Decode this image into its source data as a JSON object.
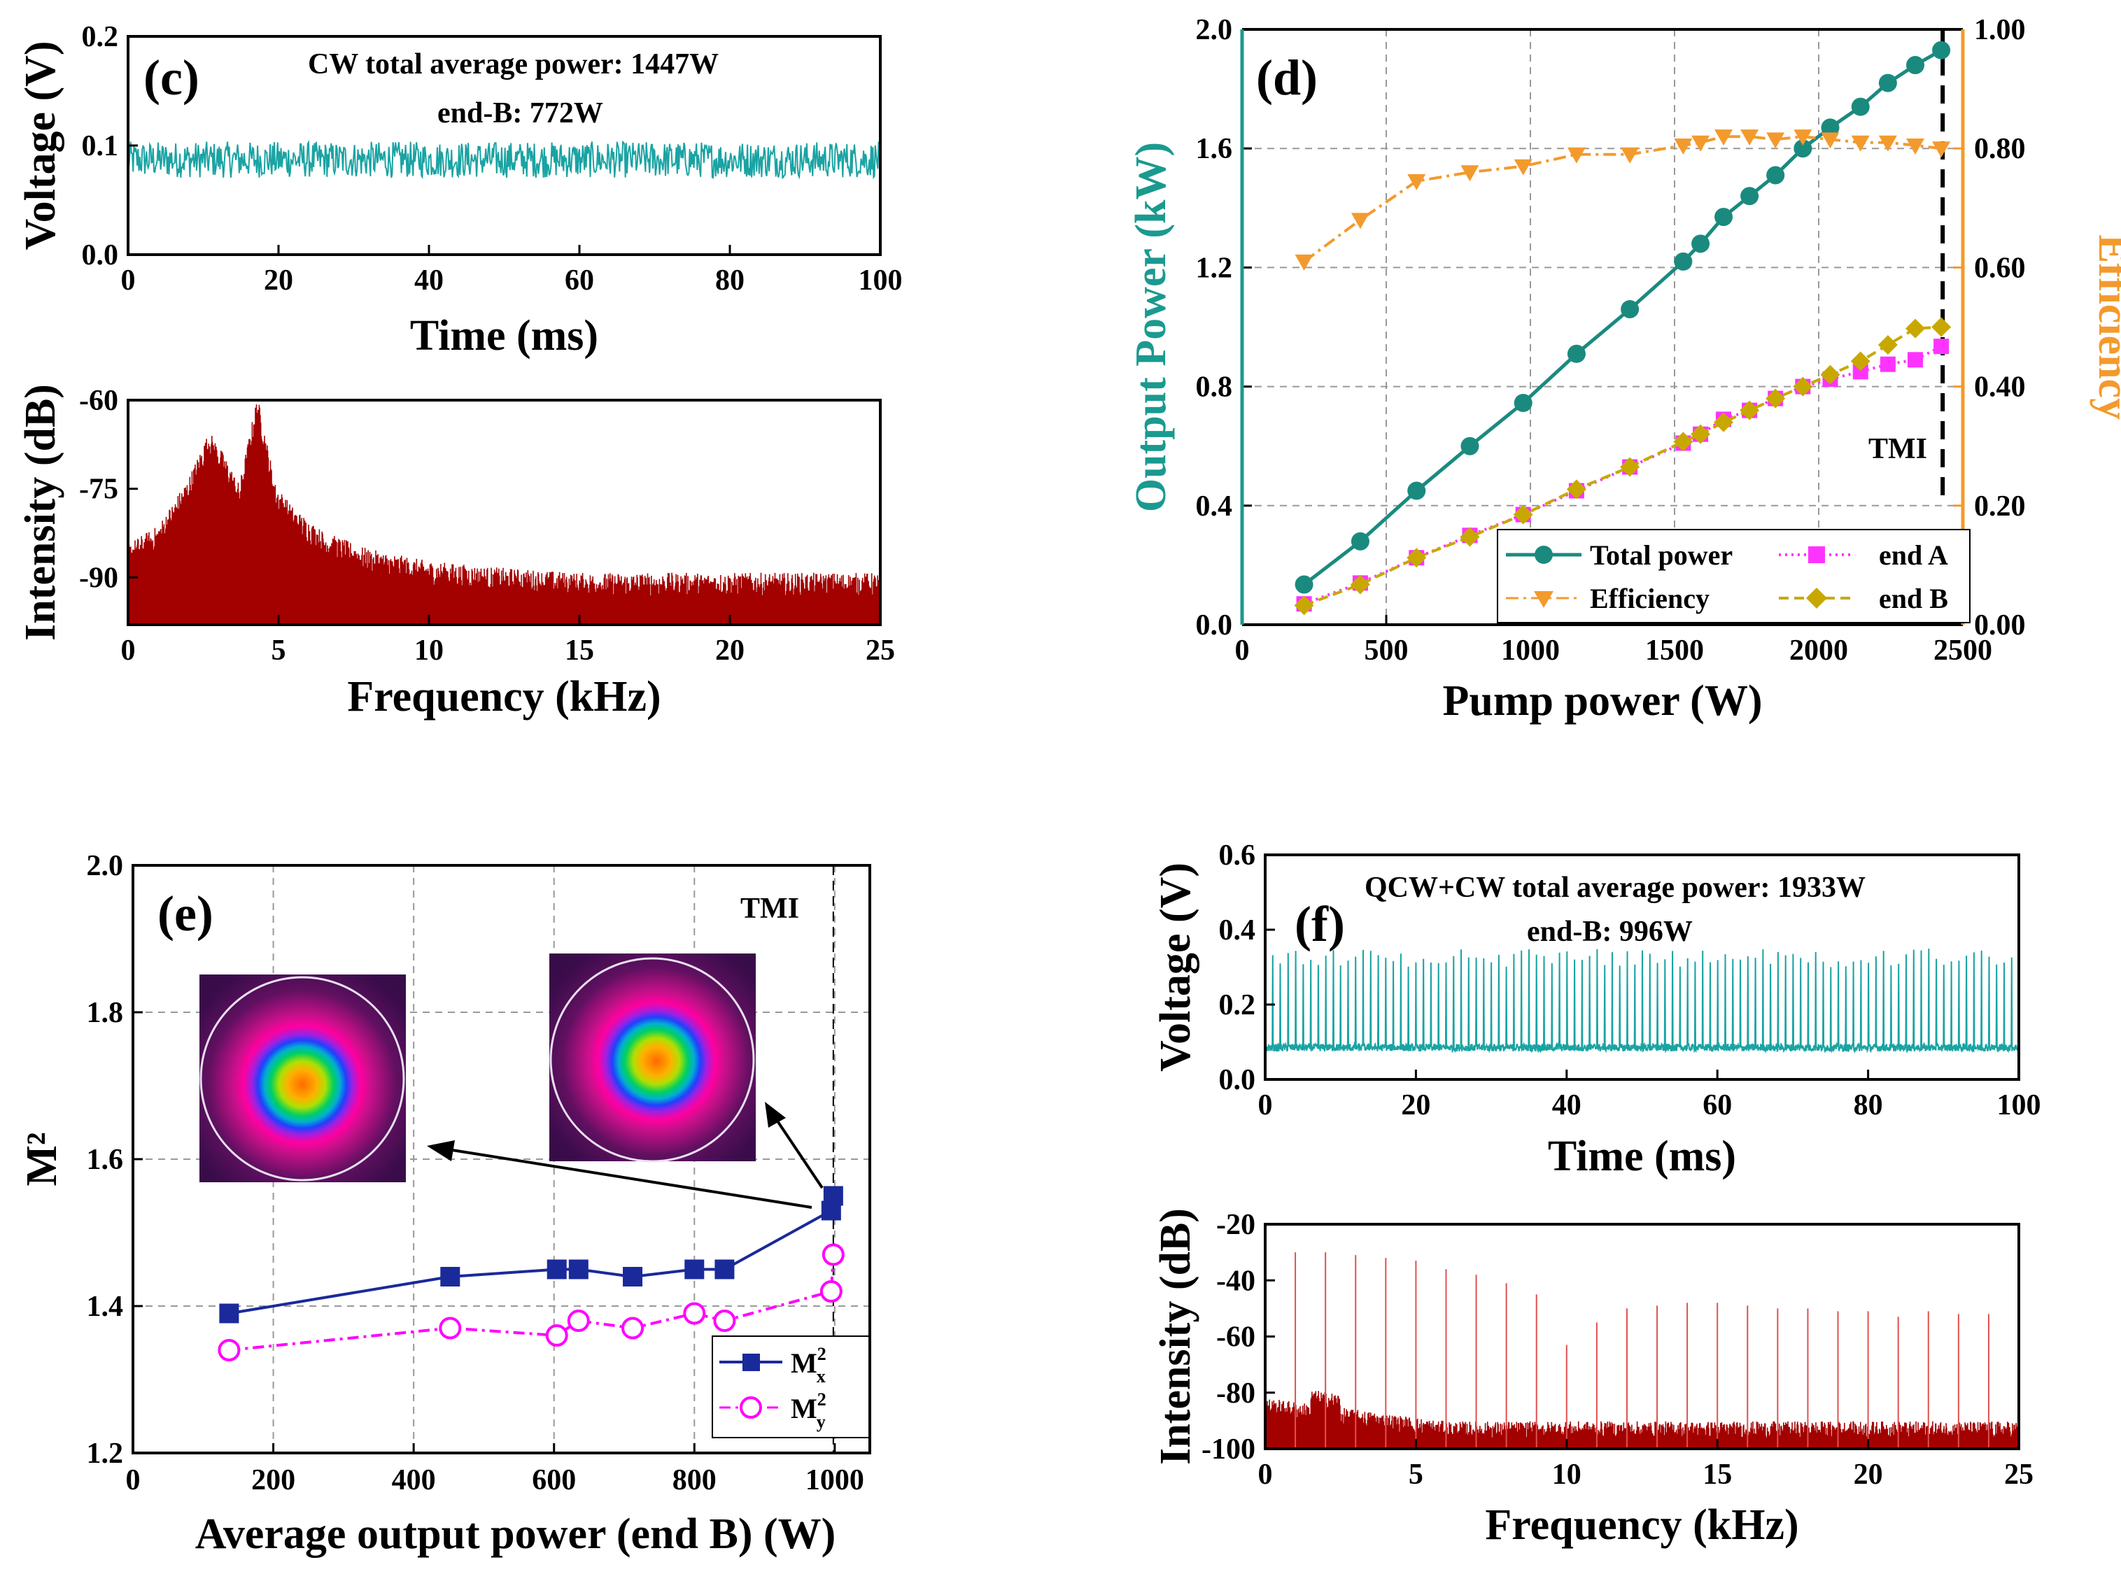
{
  "chart_data": [
    {
      "id": "c",
      "panel_label": "(c)",
      "type": "line",
      "title": "",
      "annotation_lines": [
        "CW total average power: 1447W",
        "end-B: 772W"
      ],
      "subplots": [
        {
          "xlabel": "Time (ms)",
          "ylabel": "Voltage (V)",
          "xlim": [
            0,
            100
          ],
          "ylim": [
            0,
            0.2
          ],
          "xticks": [
            "0",
            "20",
            "40",
            "60",
            "80",
            "100"
          ],
          "yticks": [
            "0.0",
            "0.1",
            "0.2"
          ],
          "series": [
            {
              "name": "voltage",
              "color": "#1aa3a3",
              "mean": 0.087,
              "band": [
                0.07,
                0.105
              ]
            }
          ]
        },
        {
          "xlabel": "Frequency (kHz)",
          "ylabel": "Intensity (dB)",
          "xlim": [
            0,
            25
          ],
          "ylim": [
            -98,
            -60
          ],
          "xticks": [
            "0",
            "5",
            "10",
            "15",
            "20",
            "25"
          ],
          "yticks": [
            "-60",
            "-75",
            "-90"
          ],
          "series": [
            {
              "name": "spectrum",
              "color": "#a30000",
              "envelope_x": [
                0,
                1,
                2,
                2.7,
                3.2,
                3.7,
                4.3,
                4.9,
                5.5,
                6.5,
                8,
                10,
                12,
                15,
                20,
                25
              ],
              "envelope_y": [
                -87,
                -84,
                -76,
                -68,
                -72,
                -77,
                -62,
                -77,
                -81,
                -85,
                -88,
                -90,
                -91,
                -92,
                -92,
                -92
              ]
            }
          ]
        }
      ]
    },
    {
      "id": "d",
      "panel_label": "(d)",
      "type": "line",
      "title": "",
      "xlabel": "Pump power (W)",
      "ylabel": "Output Power (kW)",
      "ylabel_right": "Efficiency",
      "xlim": [
        0,
        2500
      ],
      "ylim": [
        0,
        2.0
      ],
      "ylim_right": [
        0,
        1.0
      ],
      "xticks": [
        "0",
        "500",
        "1000",
        "1500",
        "2000",
        "2500"
      ],
      "yticks": [
        "0.0",
        "0.4",
        "0.8",
        "1.2",
        "1.6",
        "2.0"
      ],
      "yticks_right": [
        "0.00",
        "0.20",
        "0.40",
        "0.60",
        "0.80",
        "1.00"
      ],
      "annotation": "TMI",
      "tmi_x": 2430,
      "grid": true,
      "legend_position": "bottom-right",
      "colors": {
        "left_axis": "#1a9a8f",
        "right_axis": "#f39a2d"
      },
      "series": [
        {
          "name": "Total power",
          "axis": "left",
          "color": "#1a8a7f",
          "marker": "circle",
          "style": "solid",
          "x": [
            215,
            410,
            605,
            790,
            975,
            1160,
            1345,
            1530,
            1590,
            1670,
            1760,
            1850,
            1945,
            2040,
            2145,
            2240,
            2335,
            2425
          ],
          "y": [
            0.135,
            0.28,
            0.45,
            0.6,
            0.745,
            0.91,
            1.06,
            1.22,
            1.28,
            1.37,
            1.44,
            1.51,
            1.6,
            1.67,
            1.74,
            1.82,
            1.88,
            1.93
          ]
        },
        {
          "name": "Efficiency",
          "axis": "right",
          "color": "#f39a2d",
          "marker": "triangle-down",
          "style": "dashdot",
          "x": [
            215,
            410,
            605,
            790,
            975,
            1160,
            1345,
            1530,
            1590,
            1670,
            1760,
            1850,
            1945,
            2040,
            2145,
            2240,
            2335,
            2425
          ],
          "y": [
            0.61,
            0.68,
            0.745,
            0.76,
            0.77,
            0.79,
            0.79,
            0.805,
            0.81,
            0.82,
            0.82,
            0.815,
            0.82,
            0.815,
            0.81,
            0.81,
            0.805,
            0.8
          ]
        },
        {
          "name": "end A",
          "axis": "left",
          "color": "#ff33ff",
          "marker": "square",
          "style": "dotted",
          "x": [
            215,
            410,
            605,
            790,
            975,
            1160,
            1345,
            1530,
            1590,
            1670,
            1760,
            1850,
            1945,
            2040,
            2145,
            2240,
            2335,
            2425
          ],
          "y": [
            0.07,
            0.14,
            0.225,
            0.3,
            0.37,
            0.45,
            0.53,
            0.61,
            0.64,
            0.69,
            0.72,
            0.76,
            0.8,
            0.825,
            0.85,
            0.875,
            0.89,
            0.935
          ]
        },
        {
          "name": "end B",
          "axis": "left",
          "color": "#c8a800",
          "marker": "diamond",
          "style": "dashed",
          "x": [
            215,
            410,
            605,
            790,
            975,
            1160,
            1345,
            1530,
            1590,
            1670,
            1760,
            1850,
            1945,
            2040,
            2145,
            2240,
            2335,
            2425
          ],
          "y": [
            0.065,
            0.135,
            0.225,
            0.295,
            0.37,
            0.455,
            0.53,
            0.615,
            0.64,
            0.68,
            0.72,
            0.76,
            0.8,
            0.84,
            0.885,
            0.94,
            0.995,
            1.0
          ]
        }
      ]
    },
    {
      "id": "e",
      "panel_label": "(e)",
      "type": "scatter",
      "title": "",
      "xlabel": "Average output power (end B) (W)",
      "ylabel": "M²",
      "xlim": [
        0,
        1050
      ],
      "ylim": [
        1.2,
        2.0
      ],
      "xticks": [
        "0",
        "200",
        "400",
        "600",
        "800",
        "1000"
      ],
      "yticks": [
        "1.2",
        "1.4",
        "1.6",
        "1.8",
        "2.0"
      ],
      "annotation": "TMI",
      "tmi_x": 998,
      "grid": true,
      "legend_position": "bottom-right",
      "series": [
        {
          "name": "M²x",
          "legend_main": "M",
          "legend_sup": "2",
          "legend_sub": "x",
          "color": "#1a2a9a",
          "marker": "square",
          "style": "solid",
          "x": [
            137,
            452,
            604,
            635,
            712,
            800,
            843,
            995,
            998
          ],
          "y": [
            1.39,
            1.44,
            1.45,
            1.45,
            1.44,
            1.45,
            1.45,
            1.53,
            1.55
          ]
        },
        {
          "name": "M²y",
          "legend_main": "M",
          "legend_sup": "2",
          "legend_sub": "y",
          "color": "#ff00ff",
          "marker": "circle-open",
          "style": "dashdot",
          "x": [
            137,
            452,
            604,
            635,
            712,
            800,
            843,
            995,
            998
          ],
          "y": [
            1.34,
            1.37,
            1.36,
            1.38,
            1.37,
            1.39,
            1.38,
            1.42,
            1.47
          ]
        }
      ]
    },
    {
      "id": "f",
      "panel_label": "(f)",
      "type": "line",
      "title": "",
      "annotation_lines": [
        "QCW+CW total average power: 1933W",
        "end-B: 996W"
      ],
      "subplots": [
        {
          "xlabel": "Time (ms)",
          "ylabel": "Voltage (V)",
          "xlim": [
            0,
            100
          ],
          "ylim": [
            0,
            0.6
          ],
          "xticks": [
            "0",
            "20",
            "40",
            "60",
            "80",
            "100"
          ],
          "yticks": [
            "0.0",
            "0.2",
            "0.4",
            "0.6"
          ],
          "series": [
            {
              "name": "voltage",
              "color": "#1aa3a3",
              "baseline": 0.085,
              "pulse_peak": 0.35,
              "pulse_period_ms": 1.0
            }
          ]
        },
        {
          "xlabel": "Frequency (kHz)",
          "ylabel": "Intensity (dB)",
          "xlim": [
            0,
            25
          ],
          "ylim": [
            -100,
            -20
          ],
          "xticks": [
            "0",
            "5",
            "10",
            "15",
            "20",
            "25"
          ],
          "yticks": [
            "-20",
            "-40",
            "-60",
            "-80",
            "-100"
          ],
          "series": [
            {
              "name": "spectrum",
              "color": "#a30000",
              "harmonics_khz": [
                1,
                2,
                3,
                4,
                5,
                6,
                7,
                8,
                9,
                10,
                11,
                12,
                13,
                14,
                15,
                16,
                17,
                18,
                19,
                20,
                21,
                22,
                23,
                24
              ],
              "harmonic_db": [
                -30,
                -30,
                -31,
                -32,
                -33,
                -36,
                -38,
                -41,
                -45,
                -63,
                -55,
                -50,
                -49,
                -48,
                -48,
                -49,
                -50,
                -50,
                -51,
                -51,
                -53,
                -51,
                -52,
                -52
              ],
              "floor_db": -92
            }
          ]
        }
      ]
    }
  ]
}
